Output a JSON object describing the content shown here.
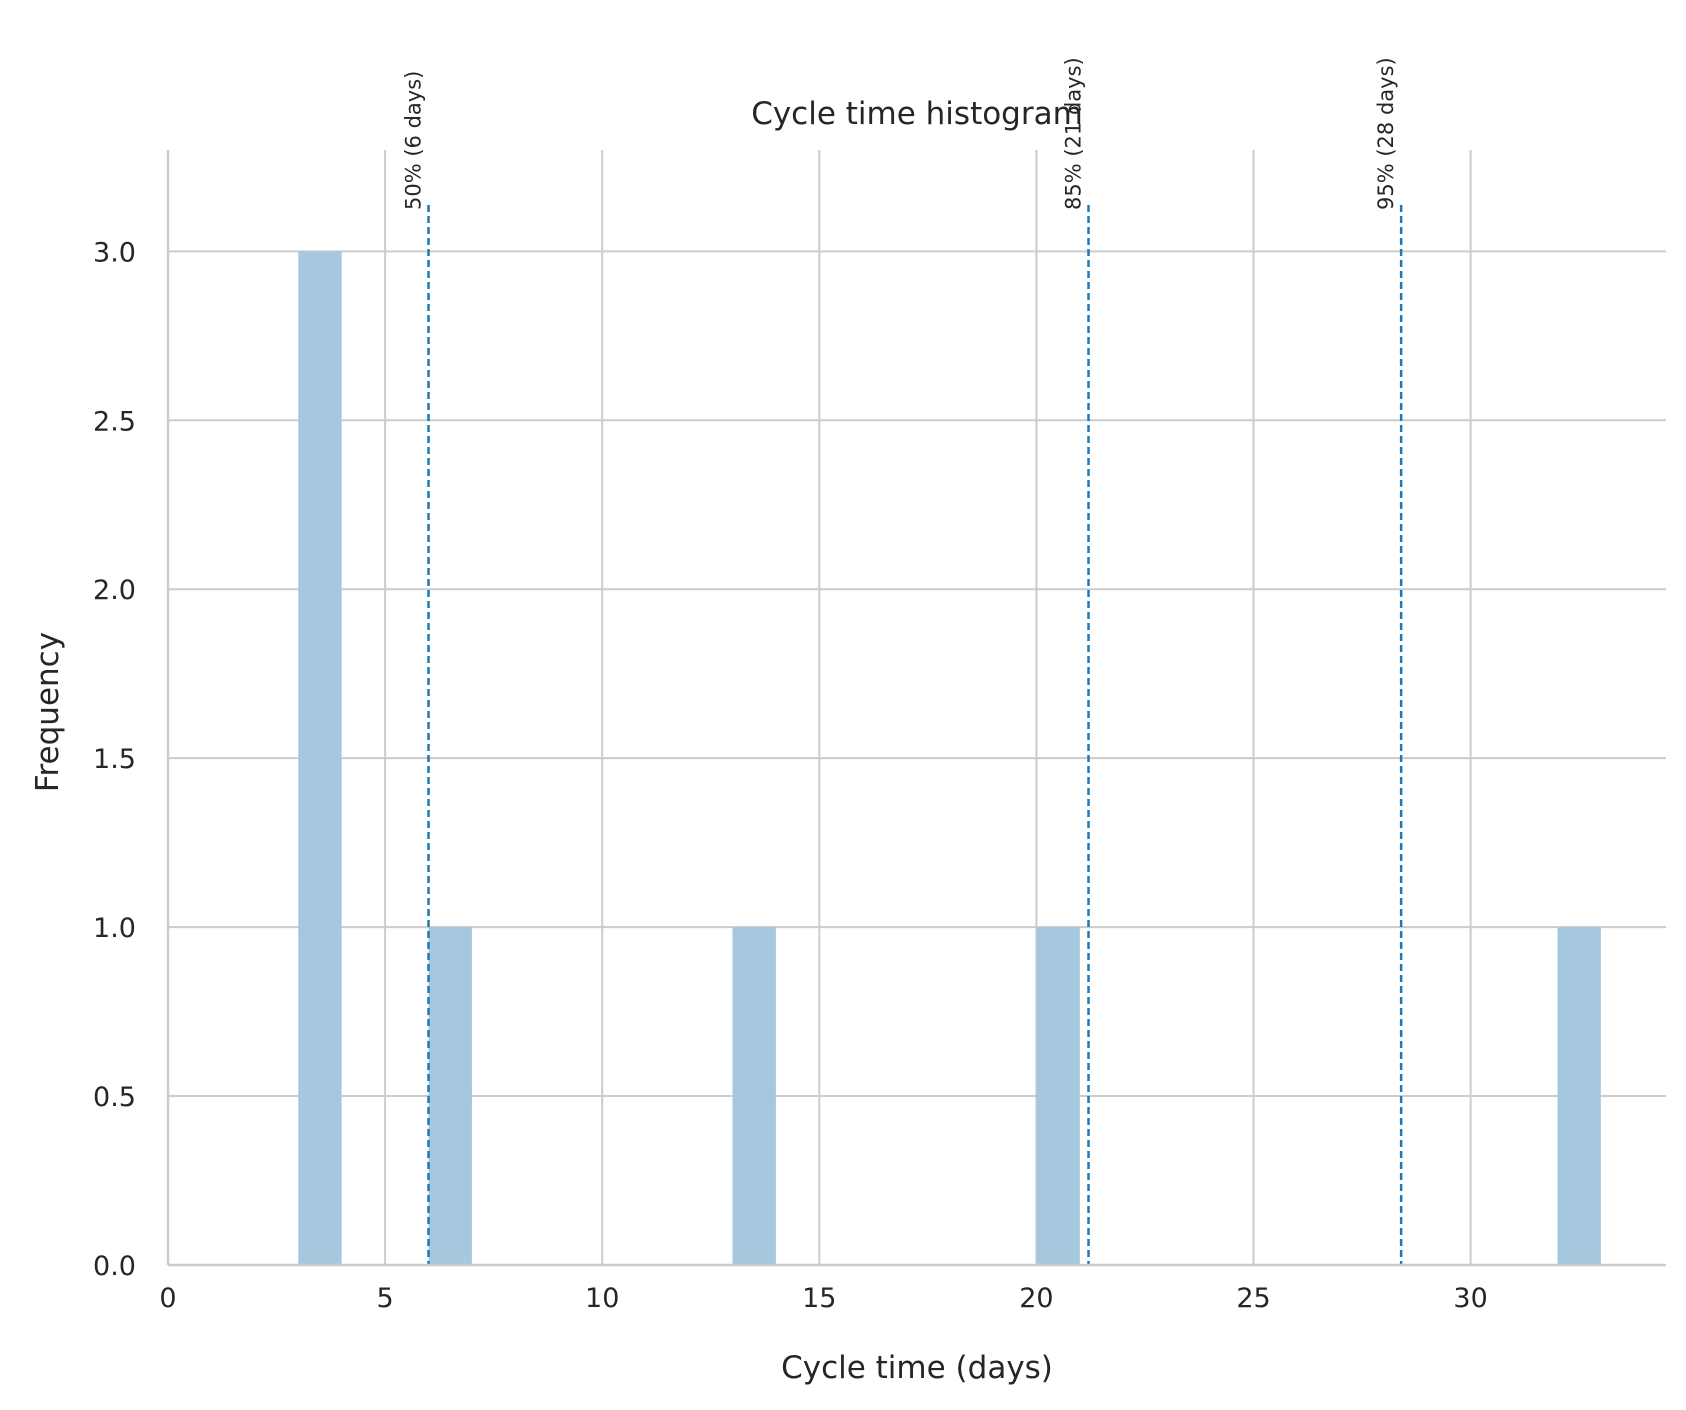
{
  "chart_data": {
    "type": "bar",
    "title": "Cycle time histogram",
    "xlabel": "Cycle time (days)",
    "ylabel": "Frequency",
    "xlim": [
      0,
      34.5
    ],
    "ylim": [
      0,
      3.3
    ],
    "xticks": [
      0,
      5,
      10,
      15,
      20,
      25,
      30
    ],
    "yticks": [
      "0.0",
      "0.5",
      "1.0",
      "1.5",
      "2.0",
      "2.5",
      "3.0"
    ],
    "grid": true,
    "bins": [
      {
        "start": 3,
        "end": 4,
        "count": 3
      },
      {
        "start": 6,
        "end": 7,
        "count": 1
      },
      {
        "start": 13,
        "end": 14,
        "count": 1
      },
      {
        "start": 20,
        "end": 21,
        "count": 1
      },
      {
        "start": 32,
        "end": 33,
        "count": 1
      }
    ],
    "percentile_lines": [
      {
        "value": 6.0,
        "label": "50% (6 days)"
      },
      {
        "value": 21.2,
        "label": "85% (21 days)"
      },
      {
        "value": 28.4,
        "label": "95% (28 days)"
      }
    ],
    "colors": {
      "bar": "#a6c8df",
      "line": "#1f77b4",
      "grid": "#cccccc",
      "text": "#262626"
    }
  }
}
